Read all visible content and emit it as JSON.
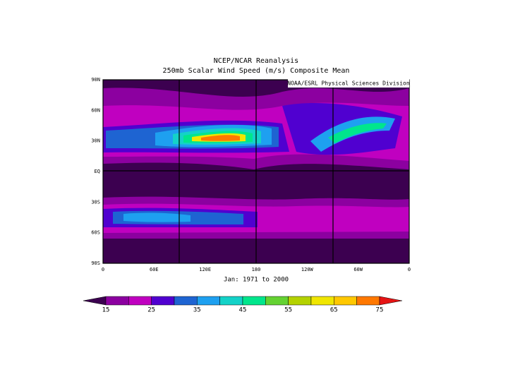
{
  "header": {
    "title": [
      "NCEP/NCAR Reanalysis",
      "250mb Scalar Wind Speed (m/s) Composite Mean"
    ],
    "credit": "NOAA/ESRL Physical Sciences Division"
  },
  "map": {
    "lat_labels": [
      "90N",
      "60N",
      "30N",
      "EQ",
      "30S",
      "60S",
      "90S"
    ],
    "lon_labels": [
      "0",
      "60E",
      "120E",
      "180",
      "120W",
      "60W",
      "0"
    ],
    "period": "Jan: 1971 to 2000"
  },
  "colorbar": {
    "labels": [
      "15",
      "25",
      "35",
      "45",
      "55",
      "65",
      "75"
    ]
  }
}
